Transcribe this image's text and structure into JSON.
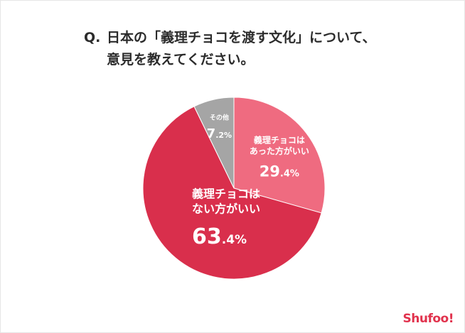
{
  "question": {
    "mark": "Q.",
    "line1": "日本の「義理チョコを渡す文化」について、",
    "line2": "意見を教えてください。"
  },
  "chart_data": {
    "type": "pie",
    "start_angle_deg": 0,
    "direction": "clockwise",
    "slices": [
      {
        "label_lines": [
          "義理チョコは",
          "あった方がいい"
        ],
        "value": 29.4,
        "display": "29.4%",
        "color": "#ef6b80"
      },
      {
        "label_lines": [
          "義理チョコは",
          "ない方がいい"
        ],
        "value": 63.4,
        "display": "63.4%",
        "color": "#d92f4c"
      },
      {
        "label_lines": [
          "その他"
        ],
        "value": 7.2,
        "display": "7.2%",
        "color": "#a5a5a5"
      }
    ]
  },
  "logo": {
    "text": "Shufoo!"
  }
}
